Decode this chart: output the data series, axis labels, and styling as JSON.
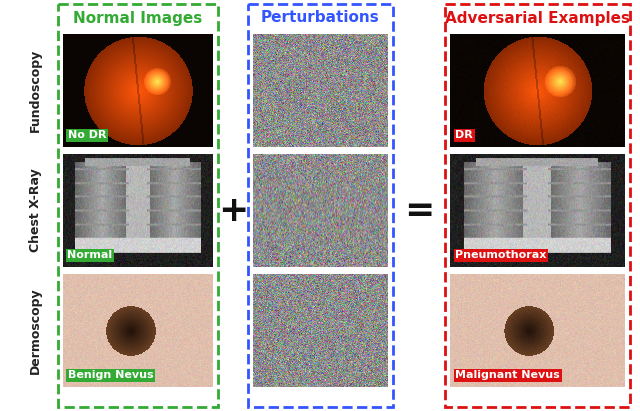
{
  "col_titles": [
    "Normal Images",
    "Perturbations",
    "Adversarial Examples"
  ],
  "col_title_colors": [
    "#33aa33",
    "#3355ff",
    "#dd1111"
  ],
  "row_labels": [
    "Fundoscopy",
    "Chest X-Ray",
    "Dermoscopy"
  ],
  "normal_labels": [
    "No DR",
    "Normal",
    "Benign Nevus"
  ],
  "adversarial_labels": [
    "DR",
    "Pneumothorax",
    "Malignant Nevus"
  ],
  "normal_label_bg": "#33aa33",
  "adversarial_label_bg": "#dd1111",
  "label_text_color": "#ffffff",
  "border_colors": [
    "#33aa33",
    "#3355ff",
    "#dd1111"
  ],
  "bg_color": "#ffffff",
  "operator_fontsize": 26,
  "col_title_fontsize": 11,
  "row_label_fontsize": 9,
  "image_label_fontsize": 8,
  "row_label_color": "#222222"
}
